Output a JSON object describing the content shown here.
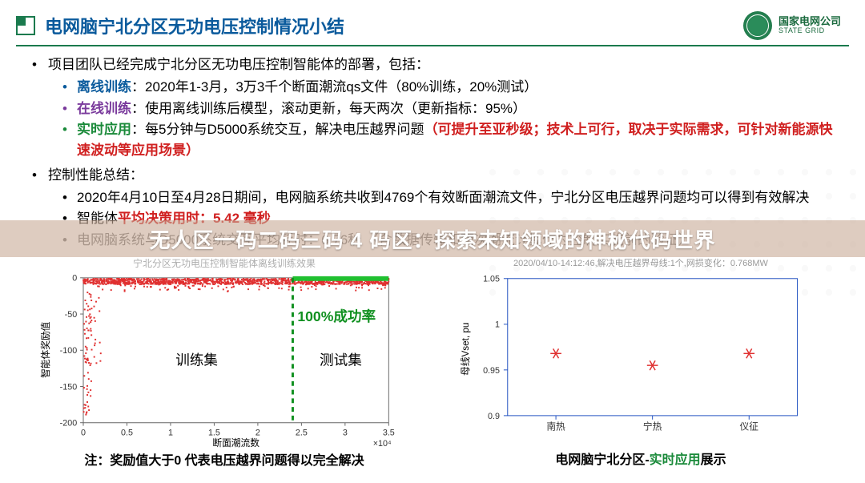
{
  "header": {
    "title": "电网脑宁北分区无功电压控制情况小结",
    "company_cn": "国家电网公司",
    "company_en": "STATE GRID"
  },
  "bullets": {
    "lead1": "项目团队已经完成宁北分区无功电压控制智能体的部署，包括：",
    "offline_label": "离线训练",
    "offline_text": "：2020年1-3月，3万3千个断面潮流qs文件（80%训练，20%测试）",
    "online_label": "在线训练",
    "online_text": "：使用离线训练后模型，滚动更新，每天两次（更新指标：95%）",
    "realtime_label": "实时应用",
    "realtime_text": "：每5分钟与D5000系统交互，解决电压越界问题",
    "realtime_red": "（可提升至亚秒级；技术上可行，取决于实际需求，可针对新能源快速波动等应用场景）",
    "perf_lead": "控制性能总结：",
    "perf1": "2020年4月10日至4月28日期间，电网脑系统共收到4769个有效断面潮流文件，宁北分区电压越界问题均可以得到有效解决",
    "perf2_a": "智能体",
    "perf2_b": "平均决策用时：5.42 毫秒",
    "perf3": "电网脑系统与D5000系统交互平均耗时：6.76秒 （含数据传输和两次潮流计算作为控制实施前的验证）"
  },
  "banner": "无人区一码二码三码 4 码区：探索未知领域的神秘代码世界",
  "left_chart": {
    "title": "宁北分区无功电压控制智能体离线训练效果",
    "xlabel": "断面潮流数",
    "ylabel": "智能体奖励值",
    "xscale": "×10⁴",
    "xlim": [
      0,
      3.5
    ],
    "xticks": [
      0,
      0.5,
      1,
      1.5,
      2,
      2.5,
      3,
      3.5
    ],
    "ylim": [
      -200,
      0
    ],
    "yticks": [
      -200,
      -150,
      -100,
      -50,
      0
    ],
    "split_x": 2.4,
    "success_label": "100%成功率",
    "train_label": "训练集",
    "test_label": "测试集",
    "top_green_start": 2.4,
    "caption_prefix": "注：",
    "caption": "奖励值大于0 代表电压越界问题得以完全解决",
    "scatter_color": "#e03030",
    "topbar_color": "#20c030",
    "divider_color": "#109020",
    "axis_color": "#666666",
    "label_color": "#109020",
    "title_fontsize": 12,
    "axis_fontsize": 11,
    "inset_fontsize": 18
  },
  "right_chart": {
    "title": "2020/04/10-14:12:46,解决电压越界母线:1个,网损变化：0.768MW",
    "xlabel_items": [
      "南热",
      "宁热",
      "仪征"
    ],
    "ylabel": "母线Vset, pu",
    "ylim": [
      0.9,
      1.05
    ],
    "yticks": [
      0.9,
      0.95,
      1,
      1.05
    ],
    "points": [
      {
        "x": 0,
        "y": 0.968
      },
      {
        "x": 1,
        "y": 0.955
      },
      {
        "x": 2,
        "y": 0.968
      }
    ],
    "marker_color": "#e03030",
    "box_color": "#2050c0",
    "caption_a": "电网脑宁北分区-",
    "caption_b": "实时应用",
    "caption_c": "展示",
    "axis_fontsize": 11
  },
  "colors": {
    "title_blue": "#0a5a9c",
    "green_accent": "#1a7a4e",
    "red": "#d02020",
    "purple": "#7a3a9c",
    "green_text": "#1a8a3a"
  }
}
